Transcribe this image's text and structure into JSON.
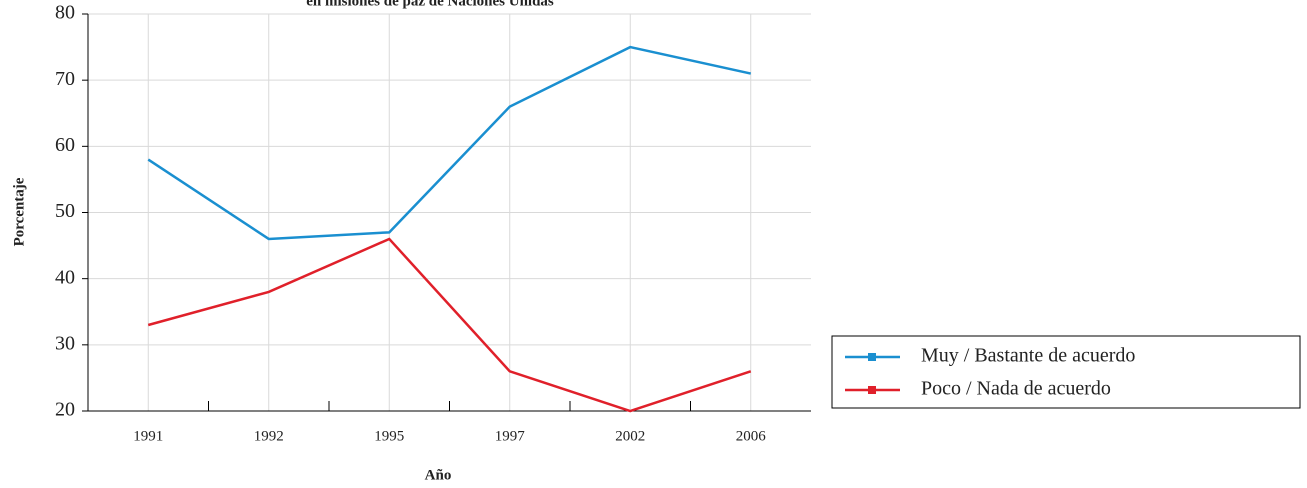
{
  "chart_data": {
    "type": "line",
    "title": "en misiones de paz de Naciones Unidas",
    "x_label": "Año",
    "y_label": "Porcentaje",
    "categories": [
      "1991",
      "1992",
      "1995",
      "1997",
      "2002",
      "2006"
    ],
    "series": [
      {
        "name": "Muy / Bastante de acuerdo",
        "color": "#1a8fd0",
        "values": [
          58,
          46,
          47,
          66,
          75,
          71
        ]
      },
      {
        "name": "Poco / Nada de acuerdo",
        "color": "#e0202a",
        "values": [
          33,
          38,
          46,
          26,
          20,
          26
        ]
      }
    ],
    "ylim": [
      20,
      80
    ],
    "yticks": [
      20,
      30,
      40,
      50,
      60,
      70,
      80
    ],
    "grid": true,
    "legend": "lower-right"
  }
}
